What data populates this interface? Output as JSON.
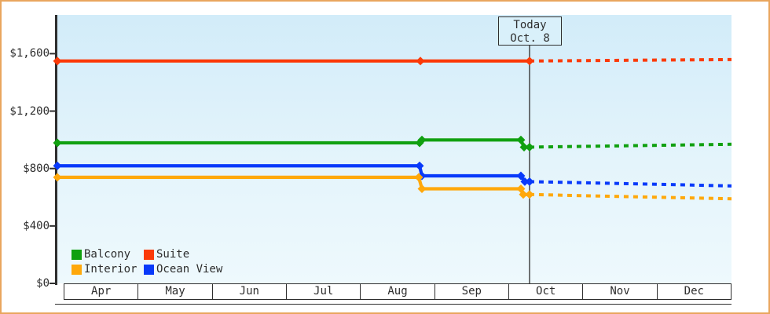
{
  "chart_data": {
    "type": "line",
    "title": "",
    "xlabel": "",
    "ylabel": "",
    "grid": false,
    "x_axis": {
      "months": [
        "Apr",
        "May",
        "Jun",
        "Jul",
        "Aug",
        "Sep",
        "Oct",
        "Nov",
        "Dec"
      ]
    },
    "y_axis": {
      "ylim": [
        0,
        1870
      ],
      "ticks": [
        {
          "value": 0,
          "label": "$0"
        },
        {
          "value": 400,
          "label": "$400"
        },
        {
          "value": 800,
          "label": "$800"
        },
        {
          "value": 1200,
          "label": "$1,200"
        },
        {
          "value": 1600,
          "label": "$1,600"
        }
      ]
    },
    "today_marker": {
      "line1": "Today",
      "line2": "Oct. 8",
      "t": 0.7004
    },
    "series": [
      {
        "name": "Suite",
        "color": "#fb3a08",
        "points": [
          {
            "t": 0,
            "value": 1549
          },
          {
            "t": 0.5385,
            "value": 1549
          },
          {
            "t": 0.7004,
            "value": 1549
          }
        ],
        "forecast": [
          {
            "t": 0.7004,
            "value": 1549
          },
          {
            "t": 1,
            "value": 1559
          }
        ]
      },
      {
        "name": "Balcony",
        "color": "#10a010",
        "points": [
          {
            "t": 0,
            "value": 979
          },
          {
            "t": 0.5373,
            "value": 979
          },
          {
            "t": 0.5408,
            "value": 999
          },
          {
            "t": 0.6876,
            "value": 999
          },
          {
            "t": 0.6923,
            "value": 949
          },
          {
            "t": 0.7004,
            "value": 949
          }
        ],
        "forecast": [
          {
            "t": 0.7004,
            "value": 949
          },
          {
            "t": 1,
            "value": 969
          }
        ]
      },
      {
        "name": "Ocean View",
        "color": "#0839fa",
        "points": [
          {
            "t": 0,
            "value": 819
          },
          {
            "t": 0.5373,
            "value": 819
          },
          {
            "t": 0.5408,
            "value": 749
          },
          {
            "t": 0.6876,
            "value": 749
          },
          {
            "t": 0.6934,
            "value": 709
          },
          {
            "t": 0.7004,
            "value": 709
          }
        ],
        "forecast": [
          {
            "t": 0.7004,
            "value": 709
          },
          {
            "t": 1,
            "value": 679
          }
        ]
      },
      {
        "name": "Interior",
        "color": "#ffa80b",
        "points": [
          {
            "t": 0,
            "value": 739
          },
          {
            "t": 0.5361,
            "value": 739
          },
          {
            "t": 0.5408,
            "value": 659
          },
          {
            "t": 0.6876,
            "value": 659
          },
          {
            "t": 0.6911,
            "value": 619
          },
          {
            "t": 0.7004,
            "value": 619
          }
        ],
        "forecast": [
          {
            "t": 0.7004,
            "value": 619
          },
          {
            "t": 1,
            "value": 589
          }
        ]
      }
    ],
    "legend": {
      "position": "bottom-left",
      "items": [
        {
          "label": "Balcony",
          "color": "#10a010"
        },
        {
          "label": "Suite",
          "color": "#fb3a08"
        },
        {
          "label": "Interior",
          "color": "#ffa80b"
        },
        {
          "label": "Ocean View",
          "color": "#0839fa"
        }
      ]
    }
  }
}
